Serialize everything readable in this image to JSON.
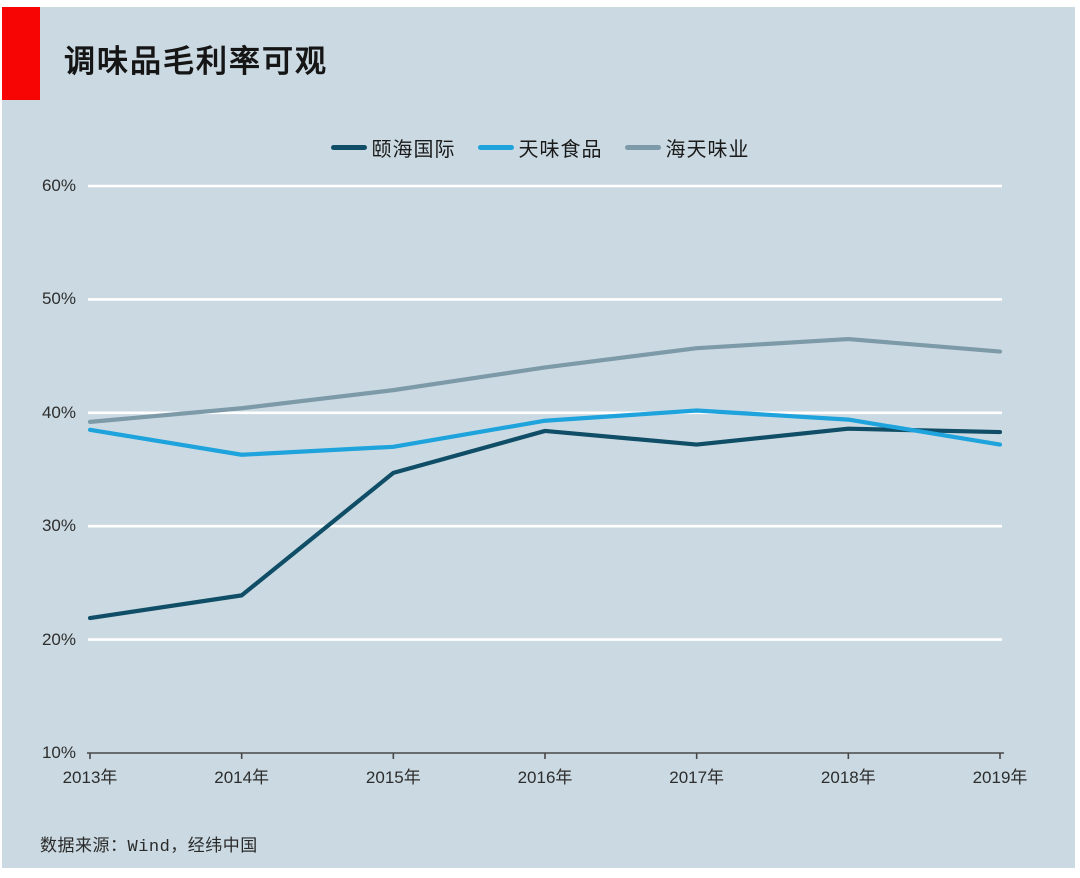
{
  "header": {
    "title": "调味品毛利率可观"
  },
  "source_note": "数据来源：Wind，经纬中国",
  "colors": {
    "panel_bg": "#cbdae2",
    "accent_red": "#f70505",
    "grid": "#ffffff",
    "axis": "#474747",
    "series_yihai": "#0f4e66",
    "series_tianwei": "#1ea3dd",
    "series_haitian": "#7d9aa8"
  },
  "chart_data": {
    "type": "line",
    "title": "调味品毛利率可观",
    "categories": [
      "2013年",
      "2014年",
      "2015年",
      "2016年",
      "2017年",
      "2018年",
      "2019年"
    ],
    "series": [
      {
        "name": "颐海国际",
        "color": "#0f4e66",
        "values": [
          21.9,
          23.9,
          34.7,
          38.4,
          37.2,
          38.6,
          38.3
        ]
      },
      {
        "name": "天味食品",
        "color": "#1ea3dd",
        "values": [
          38.5,
          36.3,
          37.0,
          39.3,
          40.2,
          39.4,
          37.2
        ]
      },
      {
        "name": "海天味业",
        "color": "#7d9aa8",
        "values": [
          39.2,
          40.4,
          42.0,
          44.0,
          45.7,
          46.5,
          45.4
        ]
      }
    ],
    "y_ticks": [
      "60%",
      "50%",
      "40%",
      "30%",
      "20%",
      "10%"
    ],
    "y_tick_values": [
      60,
      50,
      40,
      30,
      20,
      10
    ],
    "ylim": [
      10,
      60
    ],
    "grid": "horizontal",
    "legend_position": "top-center",
    "ylabel": "",
    "xlabel": ""
  }
}
